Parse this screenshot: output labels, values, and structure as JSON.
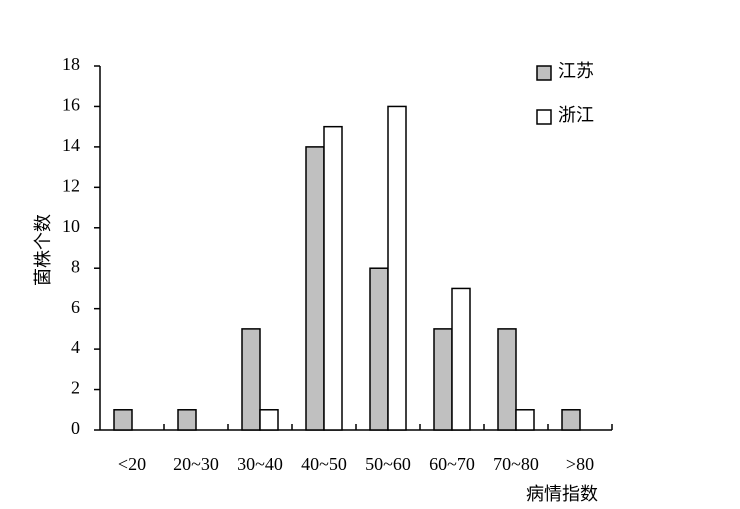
{
  "chart_data": {
    "type": "bar",
    "x_label": "病情指数",
    "y_label": "菌株个数",
    "categories": [
      "<20",
      "20~30",
      "30~40",
      "40~50",
      "50~60",
      "60~70",
      "70~80",
      ">80"
    ],
    "series": [
      {
        "name": "江苏",
        "color": "#c0c0c0",
        "values": [
          1,
          1,
          5,
          14,
          8,
          5,
          5,
          1
        ]
      },
      {
        "name": "浙江",
        "color": "#ffffff",
        "values": [
          0,
          0,
          1,
          15,
          16,
          7,
          1,
          0
        ]
      }
    ],
    "ylim": [
      0,
      18
    ],
    "yticks": [
      0,
      2,
      4,
      6,
      8,
      10,
      12,
      14,
      16,
      18
    ],
    "legend": "top-right"
  }
}
